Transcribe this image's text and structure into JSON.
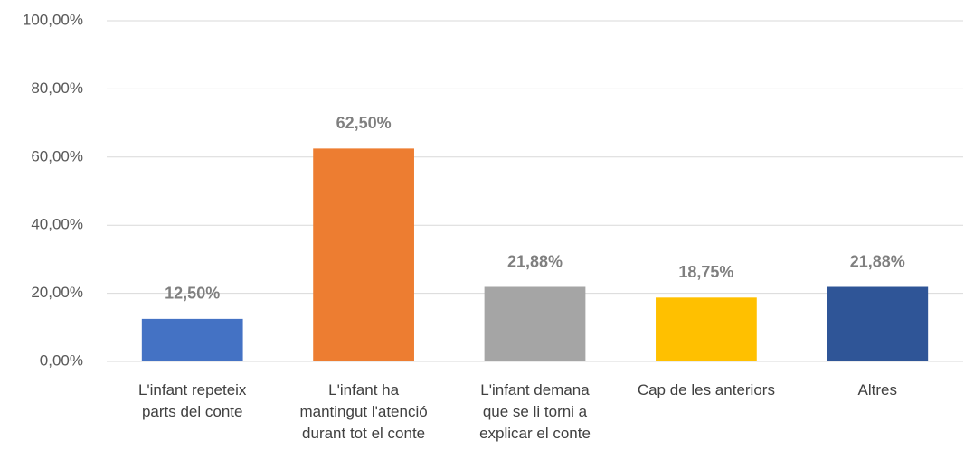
{
  "chart_data": {
    "type": "bar",
    "categories": [
      "L'infant repeteix\nparts del conte",
      "L'infant ha\nmantingut l'atenció\ndurant tot el conte",
      "L'infant demana\nque se li torni a\nexplicar el conte",
      "Cap de les anteriors",
      "Altres"
    ],
    "values": [
      12.5,
      62.5,
      21.88,
      18.75,
      21.88
    ],
    "value_labels": [
      "12,50%",
      "62,50%",
      "21,88%",
      "18,75%",
      "21,88%"
    ],
    "colors": [
      "#4472c4",
      "#ed7d31",
      "#a5a5a5",
      "#ffc000",
      "#2f5597"
    ],
    "ylim": [
      0,
      100
    ],
    "yticks": [
      {
        "value": 0,
        "label": "0,00%"
      },
      {
        "value": 20,
        "label": "20,00%"
      },
      {
        "value": 40,
        "label": "40,00%"
      },
      {
        "value": 60,
        "label": "60,00%"
      },
      {
        "value": 80,
        "label": "80,00%"
      },
      {
        "value": 100,
        "label": "100,00%"
      }
    ],
    "grid": true
  }
}
